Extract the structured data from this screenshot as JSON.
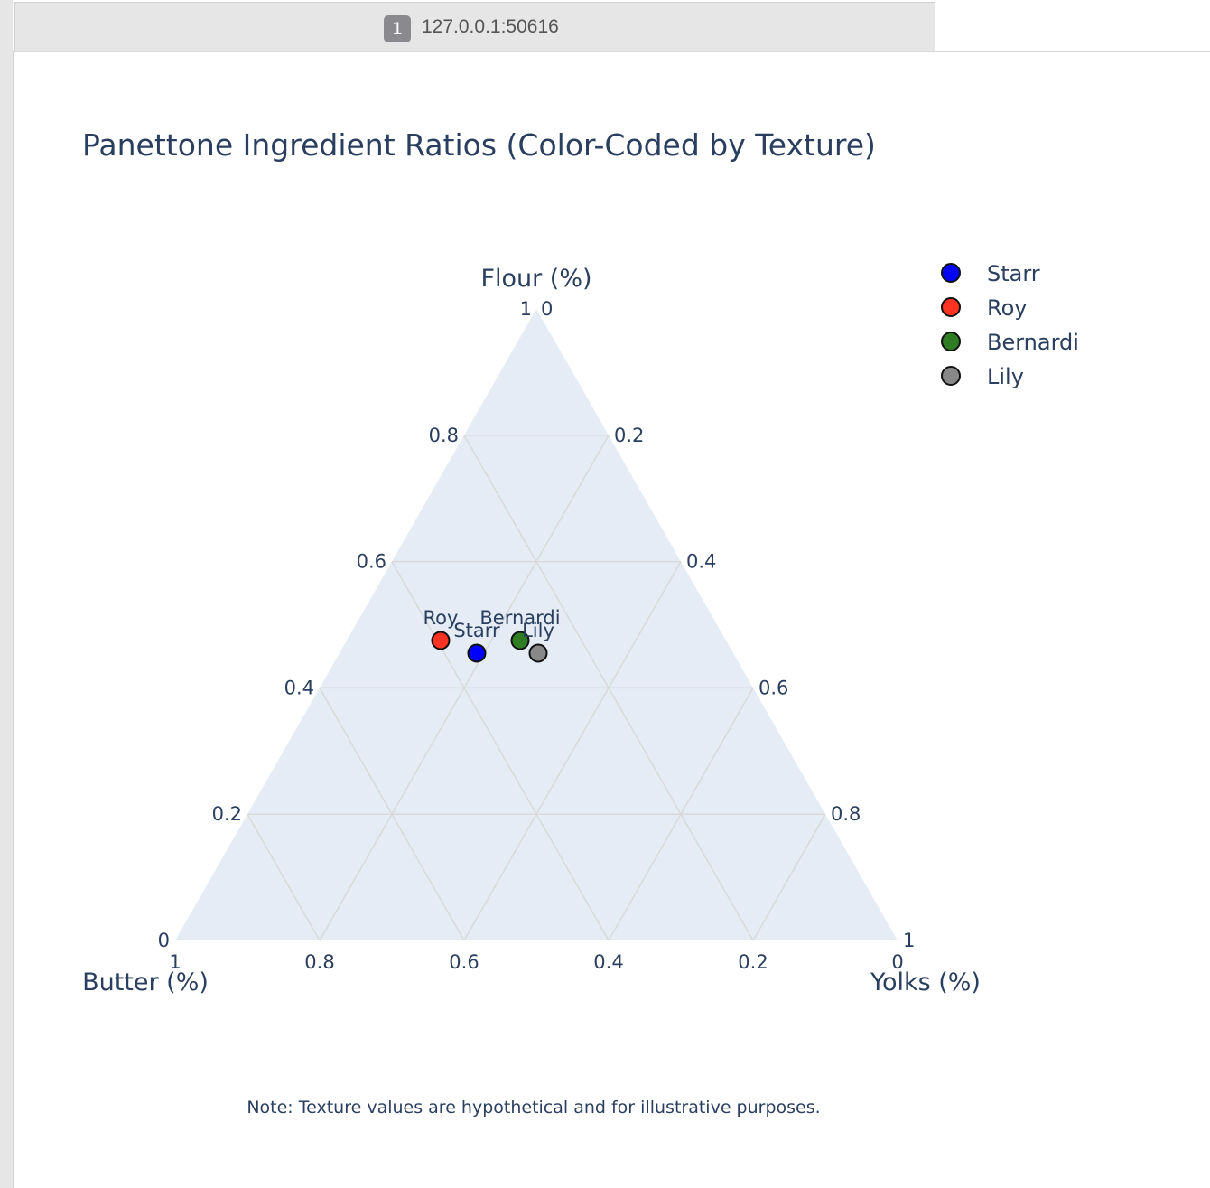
{
  "browser": {
    "tab_badge": "1",
    "tab_title": "127.0.0.1:50616"
  },
  "chart_data": {
    "type": "ternary-scatter",
    "title": "Panettone Ingredient Ratios (Color-Coded by Texture)",
    "axes": {
      "a": {
        "title": "Flour (%)",
        "position": "top"
      },
      "b": {
        "title": "Butter (%)",
        "position": "bottom-left"
      },
      "c": {
        "title": "Yolks (%)",
        "position": "bottom-right"
      }
    },
    "a_ticks": [
      "0",
      "0.2",
      "0.4",
      "0.6",
      "0.8",
      "1"
    ],
    "b_ticks": [
      "0",
      "0.2",
      "0.4",
      "0.6",
      "0.8",
      "1"
    ],
    "c_ticks": [
      "0",
      "0.2",
      "0.4",
      "0.6",
      "0.8",
      "1"
    ],
    "grid": true,
    "legend_position": "top-right",
    "series": [
      {
        "name": "Starr",
        "color": "#0000ff",
        "label": "Starr",
        "flour": 0.455,
        "butter": 0.355,
        "yolks": 0.19
      },
      {
        "name": "Roy",
        "color": "#ff3322",
        "label": "Roy",
        "flour": 0.475,
        "butter": 0.395,
        "yolks": 0.13
      },
      {
        "name": "Bernardi",
        "color": "#2e7d22",
        "label": "Bernardi",
        "flour": 0.475,
        "butter": 0.285,
        "yolks": 0.24
      },
      {
        "name": "Lily",
        "color": "#888888",
        "label": "Lily",
        "flour": 0.455,
        "butter": 0.27,
        "yolks": 0.275
      }
    ],
    "note": "Note: Texture values are hypothetical and for illustrative purposes."
  }
}
